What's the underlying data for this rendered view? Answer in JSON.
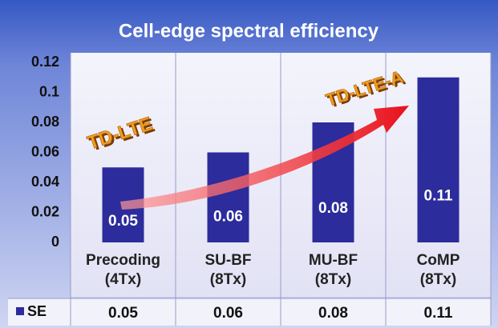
{
  "chart_data": {
    "type": "bar",
    "title": "Cell-edge spectral efficiency",
    "categories": [
      "Precoding\n(4Tx)",
      "SU-BF\n(8Tx)",
      "MU-BF\n(8Tx)",
      "CoMP\n(8Tx)"
    ],
    "series": [
      {
        "name": "SE",
        "color": "#2c2c9c",
        "values": [
          0.05,
          0.06,
          0.08,
          0.11
        ]
      }
    ],
    "ylim": [
      0,
      0.12
    ],
    "yticks": [
      0,
      0.02,
      0.04,
      0.06,
      0.08,
      0.1,
      0.12
    ],
    "grid": false,
    "annotations": [
      "TD-LTE",
      "TD-LTE-A"
    ]
  }
}
